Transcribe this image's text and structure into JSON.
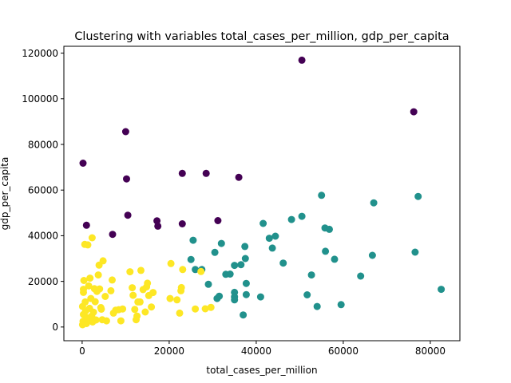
{
  "chart_data": {
    "type": "scatter",
    "title": "Clustering with variables total_cases_per_million, gdp_per_capita",
    "xlabel": "total_cases_per_million",
    "ylabel": "gdp_per_capita",
    "xlim": [
      -4200,
      86800
    ],
    "ylim": [
      -6000,
      123000
    ],
    "xticks": [
      0,
      20000,
      40000,
      60000,
      80000
    ],
    "xtick_labels": [
      "0",
      "20000",
      "40000",
      "60000",
      "80000"
    ],
    "yticks": [
      0,
      20000,
      40000,
      60000,
      80000,
      100000,
      120000
    ],
    "ytick_labels": [
      "0",
      "20000",
      "40000",
      "60000",
      "80000",
      "100000",
      "120000"
    ],
    "grid": false,
    "legend": "none",
    "series": [
      {
        "color": "#440154",
        "points": [
          [
            200,
            71800
          ],
          [
            1000,
            44600
          ],
          [
            7000,
            40600
          ],
          [
            10000,
            85600
          ],
          [
            10200,
            64900
          ],
          [
            10500,
            49000
          ],
          [
            17200,
            46500
          ],
          [
            17400,
            44200
          ],
          [
            23000,
            67300
          ],
          [
            23000,
            45200
          ],
          [
            28500,
            67300
          ],
          [
            31200,
            46600
          ],
          [
            36000,
            65600
          ],
          [
            50500,
            116900
          ],
          [
            76200,
            94300
          ]
        ]
      },
      {
        "color": "#21918c",
        "points": [
          [
            25000,
            29600
          ],
          [
            25500,
            38000
          ],
          [
            26000,
            25200
          ],
          [
            27500,
            25200
          ],
          [
            29000,
            18700
          ],
          [
            30500,
            32700
          ],
          [
            31000,
            12500
          ],
          [
            31500,
            13500
          ],
          [
            32000,
            36600
          ],
          [
            33000,
            23100
          ],
          [
            34000,
            23200
          ],
          [
            35000,
            15200
          ],
          [
            35000,
            13200
          ],
          [
            35000,
            11900
          ],
          [
            35000,
            27000
          ],
          [
            36500,
            27300
          ],
          [
            37000,
            5300
          ],
          [
            37400,
            35300
          ],
          [
            37500,
            30000
          ],
          [
            37700,
            19100
          ],
          [
            37700,
            14200
          ],
          [
            41000,
            13200
          ],
          [
            41600,
            45400
          ],
          [
            43000,
            38900
          ],
          [
            43700,
            34600
          ],
          [
            44400,
            39800
          ],
          [
            46200,
            28000
          ],
          [
            48100,
            47100
          ],
          [
            50500,
            48500
          ],
          [
            51700,
            14100
          ],
          [
            52700,
            22800
          ],
          [
            54000,
            9000
          ],
          [
            55000,
            57700
          ],
          [
            55800,
            43400
          ],
          [
            55900,
            33200
          ],
          [
            56800,
            42800
          ],
          [
            58000,
            29700
          ],
          [
            59500,
            9800
          ],
          [
            64000,
            22300
          ],
          [
            66700,
            31400
          ],
          [
            67000,
            54400
          ],
          [
            76500,
            32800
          ],
          [
            77200,
            57200
          ],
          [
            82500,
            16500
          ]
        ]
      },
      {
        "color": "#fde725",
        "points": [
          [
            100,
            1000
          ],
          [
            200,
            2500
          ],
          [
            300,
            5500
          ],
          [
            100,
            9000
          ],
          [
            300,
            15200
          ],
          [
            300,
            16500
          ],
          [
            400,
            20400
          ],
          [
            600,
            36200
          ],
          [
            700,
            11000
          ],
          [
            800,
            7000
          ],
          [
            900,
            3300
          ],
          [
            1000,
            1500
          ],
          [
            1200,
            4000
          ],
          [
            1300,
            36000
          ],
          [
            1500,
            18000
          ],
          [
            1700,
            8200
          ],
          [
            1800,
            21400
          ],
          [
            2000,
            12500
          ],
          [
            2200,
            4800
          ],
          [
            2300,
            39100
          ],
          [
            2400,
            2200
          ],
          [
            2600,
            6500
          ],
          [
            2800,
            16800
          ],
          [
            3000,
            11100
          ],
          [
            3200,
            3100
          ],
          [
            3400,
            15600
          ],
          [
            3700,
            22800
          ],
          [
            3900,
            27100
          ],
          [
            4000,
            16700
          ],
          [
            4300,
            8500
          ],
          [
            4400,
            7800
          ],
          [
            4600,
            3200
          ],
          [
            4800,
            29000
          ],
          [
            5300,
            13400
          ],
          [
            5600,
            2700
          ],
          [
            6600,
            15900
          ],
          [
            6900,
            20600
          ],
          [
            7200,
            6100
          ],
          [
            7700,
            7400
          ],
          [
            8400,
            7600
          ],
          [
            8900,
            2700
          ],
          [
            9300,
            7900
          ],
          [
            11000,
            24200
          ],
          [
            11500,
            17200
          ],
          [
            11700,
            13900
          ],
          [
            12100,
            7700
          ],
          [
            12400,
            3200
          ],
          [
            12600,
            4800
          ],
          [
            12800,
            11000
          ],
          [
            13300,
            11000
          ],
          [
            13500,
            24800
          ],
          [
            14000,
            16400
          ],
          [
            14500,
            6600
          ],
          [
            14800,
            17600
          ],
          [
            15000,
            19200
          ],
          [
            15300,
            13800
          ],
          [
            15900,
            8800
          ],
          [
            16300,
            15100
          ],
          [
            20200,
            12500
          ],
          [
            20400,
            27800
          ],
          [
            21800,
            11900
          ],
          [
            22400,
            6100
          ],
          [
            22700,
            15900
          ],
          [
            22800,
            17300
          ],
          [
            23100,
            25200
          ],
          [
            26000,
            7900
          ],
          [
            27300,
            24300
          ],
          [
            28300,
            8000
          ],
          [
            29600,
            8600
          ]
        ]
      }
    ]
  }
}
